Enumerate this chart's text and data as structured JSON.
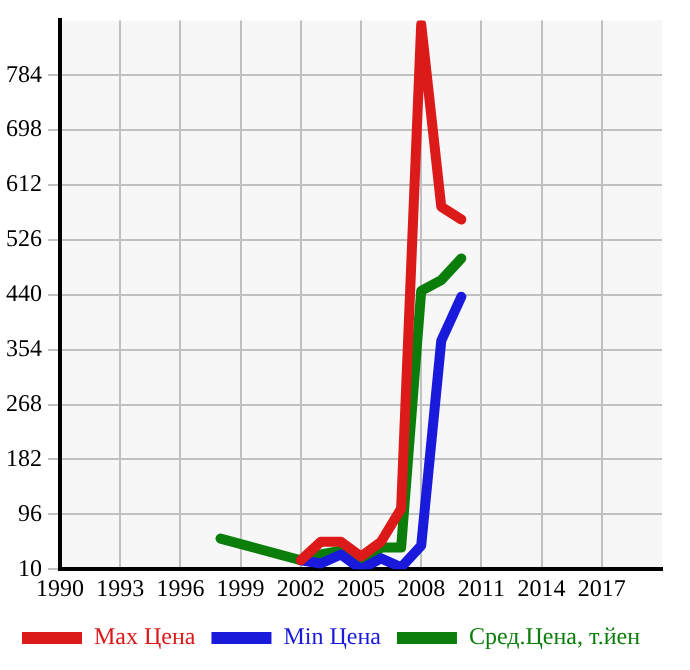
{
  "chart_data": {
    "type": "line",
    "xlim": [
      1990,
      2020
    ],
    "xticks": [
      1990,
      1993,
      1996,
      1999,
      2002,
      2005,
      2008,
      2011,
      2014,
      2017
    ],
    "ylim": [
      10,
      870
    ],
    "yticks": [
      10,
      96,
      182,
      268,
      354,
      440,
      526,
      612,
      698,
      784
    ],
    "grid": true,
    "legend": "bottom",
    "marker": "none",
    "line_style": "solid",
    "series": [
      {
        "name": "Max Цена",
        "color": "#dd1a1a",
        "x": [
          2002,
          2003,
          2004,
          2005,
          2006,
          2007,
          2008,
          2009,
          2010
        ],
        "values": [
          24,
          53,
          53,
          30,
          53,
          105,
          864,
          578,
          558
        ]
      },
      {
        "name": "Min Цена",
        "color": "#1a1add",
        "x": [
          2002,
          2003,
          2004,
          2005,
          2006,
          2007,
          2008,
          2009,
          2010
        ],
        "values": [
          24,
          19,
          33,
          10,
          27,
          13,
          47,
          368,
          437
        ]
      },
      {
        "name": "Сред.Цена, т.йен",
        "color": "#0a7d0a",
        "x": [
          1998,
          2002,
          2003,
          2004,
          2005,
          2006,
          2007,
          2008,
          2009,
          2010
        ],
        "values": [
          58,
          24,
          33,
          39,
          16,
          44,
          44,
          446,
          463,
          497
        ]
      }
    ]
  }
}
